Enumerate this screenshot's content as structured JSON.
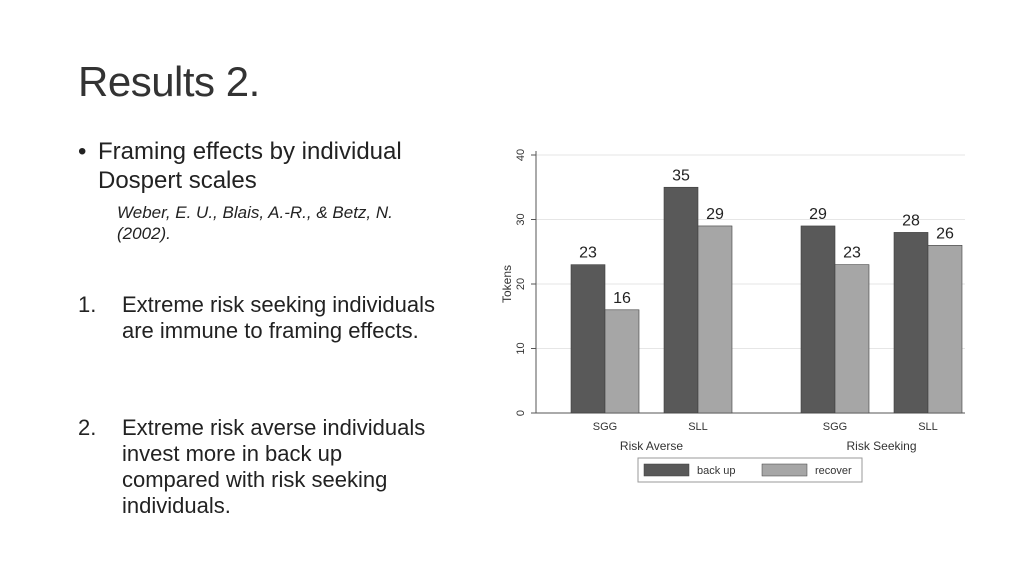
{
  "slide": {
    "title": "Results 2.",
    "bullet_text": "Framing effects by individual Dospert scales",
    "citation": "Weber, E. U., Blais, A.-R., & Betz, N. (2002).",
    "numbered_items": [
      {
        "number": "1.",
        "text": "Extreme risk seeking individuals are immune to framing effects."
      },
      {
        "number": "2.",
        "text": "Extreme risk averse individuals invest more in back up compared with risk seeking individuals."
      }
    ]
  },
  "chart_data": {
    "type": "bar",
    "groups": [
      "Risk Averse",
      "Risk Seeking"
    ],
    "categories": [
      "SGG",
      "SLL",
      "SGG",
      "SLL"
    ],
    "category_groups": [
      0,
      0,
      1,
      1
    ],
    "series": [
      {
        "name": "back up",
        "color": "#595959",
        "values": [
          23,
          35,
          29,
          28
        ]
      },
      {
        "name": "recover",
        "color": "#a6a6a6",
        "values": [
          16,
          29,
          23,
          26
        ]
      }
    ],
    "data_labels": [
      [
        "23",
        "35",
        "29",
        "28"
      ],
      [
        "16",
        "29",
        "23",
        "26"
      ]
    ],
    "ylabel": "Tokens",
    "ylim": [
      0,
      40
    ],
    "yticks": [
      "0",
      "10",
      "20",
      "30",
      "40"
    ],
    "grid": true,
    "legend_position": "bottom"
  }
}
